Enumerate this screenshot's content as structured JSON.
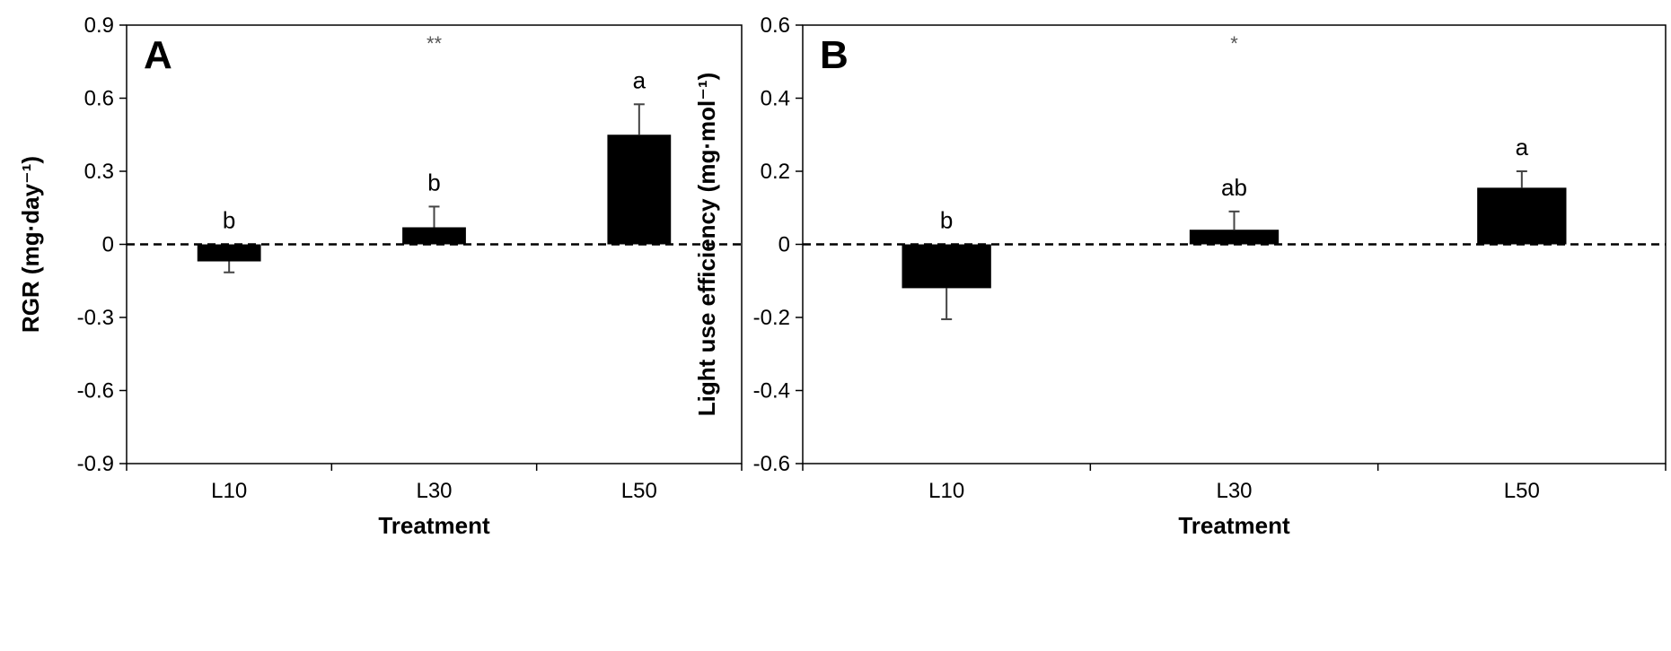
{
  "chart_data": [
    {
      "type": "bar",
      "panel_label": "A",
      "categories": [
        "L10",
        "L30",
        "L50"
      ],
      "values": [
        -0.07,
        0.07,
        0.45
      ],
      "errors": [
        0.045,
        0.085,
        0.125
      ],
      "significance_letters": [
        "b",
        "b",
        "a"
      ],
      "significance_marker": "**",
      "xlabel": "Treatment",
      "ylabel": "RGR (mg·day⁻¹)",
      "ylim": [
        -0.9,
        0.9
      ],
      "yticks": [
        -0.9,
        -0.6,
        -0.3,
        0,
        0.3,
        0.6,
        0.9
      ],
      "ytick_labels": [
        "-0.9",
        "-0.6",
        "-0.3",
        "0",
        "0.3",
        "0.6",
        "0.9"
      ],
      "zero_line": "dashed",
      "grid": false,
      "bar_color": "#000000"
    },
    {
      "type": "bar",
      "panel_label": "B",
      "categories": [
        "L10",
        "L30",
        "L50"
      ],
      "values": [
        -0.12,
        0.04,
        0.155
      ],
      "errors": [
        0.085,
        0.05,
        0.045
      ],
      "significance_letters": [
        "b",
        "ab",
        "a"
      ],
      "significance_marker": "*",
      "xlabel": "Treatment",
      "ylabel": "Light use efficiency (mg·mol⁻¹)",
      "ylim": [
        -0.6,
        0.6
      ],
      "yticks": [
        -0.6,
        -0.4,
        -0.2,
        0,
        0.2,
        0.4,
        0.6
      ],
      "ytick_labels": [
        "-0.6",
        "-0.4",
        "-0.2",
        "0",
        "0.2",
        "0.4",
        "0.6"
      ],
      "zero_line": "dashed",
      "grid": false,
      "bar_color": "#000000"
    }
  ]
}
